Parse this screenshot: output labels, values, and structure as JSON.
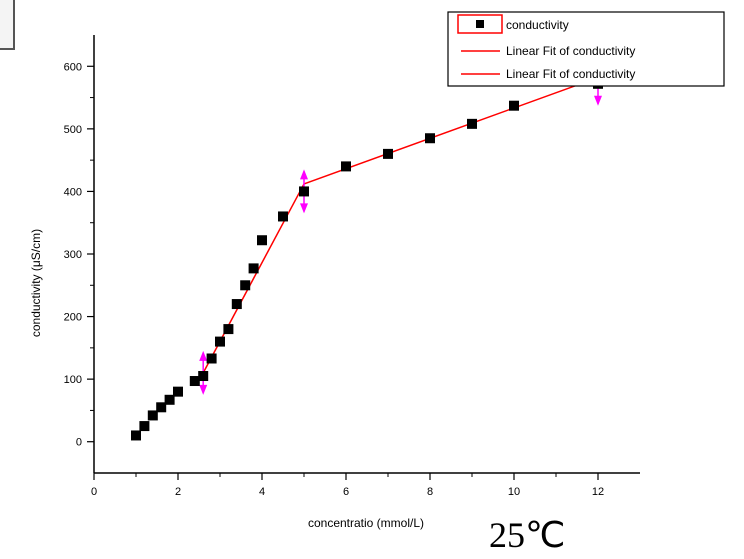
{
  "chart_data": {
    "type": "scatter",
    "xlabel": "concentratio (mmol/L)",
    "ylabel": "conductivity (μS/cm)",
    "xlim": [
      0,
      13
    ],
    "ylim": [
      -50,
      650
    ],
    "xticks": [
      0,
      2,
      4,
      6,
      8,
      10,
      12
    ],
    "yticks": [
      0,
      100,
      200,
      300,
      400,
      500,
      600
    ],
    "grid": false,
    "legend_position": "top-right",
    "annotation": "25℃",
    "series": [
      {
        "name": "conductivity",
        "kind": "points",
        "color": "#000000",
        "x": [
          1.0,
          1.2,
          1.4,
          1.6,
          1.8,
          2.0,
          2.4,
          2.6,
          2.8,
          3.0,
          3.2,
          3.4,
          3.6,
          3.8,
          4.0,
          4.5,
          5.0,
          6.0,
          7.0,
          8.0,
          9.0,
          10.0,
          12.0
        ],
        "y": [
          10,
          25,
          42,
          55,
          67,
          80,
          97,
          105,
          133,
          160,
          180,
          220,
          250,
          277,
          322,
          360,
          400,
          440,
          460,
          485,
          508,
          537,
          572
        ]
      },
      {
        "name": "Linear Fit of conductivity",
        "kind": "line",
        "color": "#ff0000",
        "x": [
          2.6,
          5.0
        ],
        "y": [
          110,
          412
        ]
      },
      {
        "name": "Linear Fit of conductivity",
        "kind": "line",
        "color": "#ff0000",
        "x": [
          5.0,
          12.0
        ],
        "y": [
          412,
          582
        ]
      }
    ],
    "range_markers": {
      "color": "#ff00ff",
      "x": [
        2.6,
        5.0,
        12.0
      ],
      "y": [
        110,
        400,
        572
      ]
    }
  }
}
